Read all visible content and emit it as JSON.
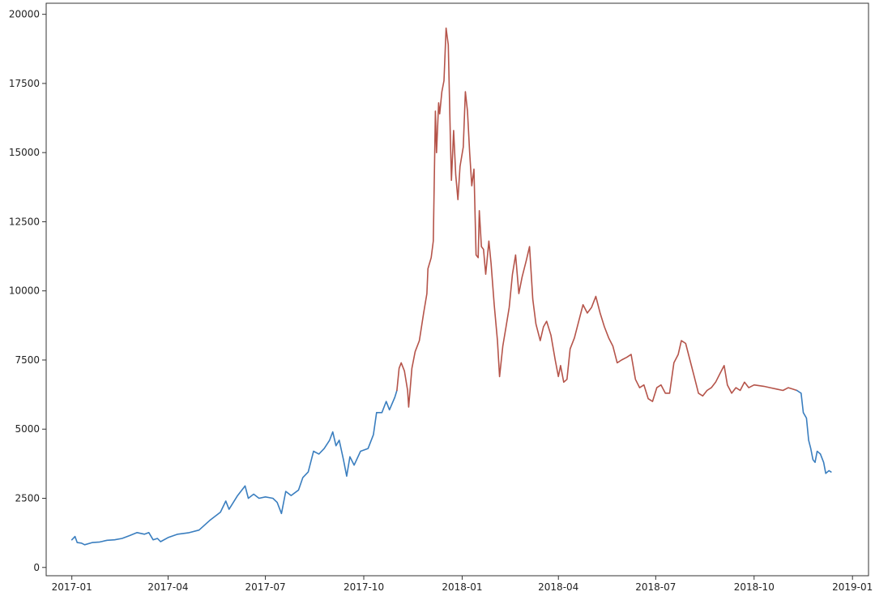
{
  "chart_data": {
    "type": "line",
    "title": "",
    "xlabel": "",
    "ylabel": "",
    "xlim": [
      "2016-12-08",
      "2019-01-16"
    ],
    "ylim": [
      -300,
      20400
    ],
    "grid": false,
    "x_ticks": [
      "2017-01",
      "2017-04",
      "2017-07",
      "2017-10",
      "2018-01",
      "2018-04",
      "2018-07",
      "2018-10",
      "2019-01"
    ],
    "y_ticks": [
      0,
      2500,
      5000,
      7500,
      10000,
      12500,
      15000,
      17500,
      20000
    ],
    "series": [
      {
        "color": "#3a7ebf",
        "points": [
          [
            "2017-01-01",
            1000
          ],
          [
            "2017-01-04",
            1120
          ],
          [
            "2017-01-06",
            900
          ],
          [
            "2017-01-10",
            880
          ],
          [
            "2017-01-13",
            820
          ],
          [
            "2017-01-20",
            900
          ],
          [
            "2017-01-27",
            920
          ],
          [
            "2017-02-03",
            980
          ],
          [
            "2017-02-10",
            1000
          ],
          [
            "2017-02-17",
            1050
          ],
          [
            "2017-02-24",
            1150
          ],
          [
            "2017-03-03",
            1260
          ],
          [
            "2017-03-10",
            1200
          ],
          [
            "2017-03-14",
            1260
          ],
          [
            "2017-03-18",
            1000
          ],
          [
            "2017-03-22",
            1050
          ],
          [
            "2017-03-25",
            930
          ],
          [
            "2017-04-01",
            1080
          ],
          [
            "2017-04-10",
            1200
          ],
          [
            "2017-04-20",
            1250
          ],
          [
            "2017-04-30",
            1350
          ],
          [
            "2017-05-10",
            1700
          ],
          [
            "2017-05-20",
            2000
          ],
          [
            "2017-05-25",
            2400
          ],
          [
            "2017-05-28",
            2100
          ],
          [
            "2017-06-05",
            2600
          ],
          [
            "2017-06-10",
            2850
          ],
          [
            "2017-06-12",
            2950
          ],
          [
            "2017-06-15",
            2500
          ],
          [
            "2017-06-20",
            2650
          ],
          [
            "2017-06-25",
            2500
          ],
          [
            "2017-07-01",
            2550
          ],
          [
            "2017-07-08",
            2500
          ],
          [
            "2017-07-12",
            2350
          ],
          [
            "2017-07-16",
            1950
          ],
          [
            "2017-07-20",
            2750
          ],
          [
            "2017-07-25",
            2600
          ],
          [
            "2017-08-01",
            2800
          ],
          [
            "2017-08-05",
            3250
          ],
          [
            "2017-08-10",
            3450
          ],
          [
            "2017-08-15",
            4200
          ],
          [
            "2017-08-20",
            4100
          ],
          [
            "2017-08-25",
            4300
          ],
          [
            "2017-08-30",
            4600
          ],
          [
            "2017-09-02",
            4900
          ],
          [
            "2017-09-05",
            4400
          ],
          [
            "2017-09-08",
            4600
          ],
          [
            "2017-09-12",
            3900
          ],
          [
            "2017-09-15",
            3300
          ],
          [
            "2017-09-18",
            4000
          ],
          [
            "2017-09-22",
            3700
          ],
          [
            "2017-09-28",
            4200
          ],
          [
            "2017-10-05",
            4300
          ],
          [
            "2017-10-10",
            4800
          ],
          [
            "2017-10-13",
            5600
          ],
          [
            "2017-10-18",
            5600
          ],
          [
            "2017-10-22",
            6000
          ],
          [
            "2017-10-25",
            5700
          ],
          [
            "2017-10-30",
            6150
          ],
          [
            "2017-11-01",
            6400
          ]
        ]
      },
      {
        "color": "#b5544a",
        "points": [
          [
            "2017-11-01",
            6400
          ],
          [
            "2017-11-03",
            7200
          ],
          [
            "2017-11-05",
            7400
          ],
          [
            "2017-11-08",
            7100
          ],
          [
            "2017-11-11",
            6400
          ],
          [
            "2017-11-12",
            5800
          ],
          [
            "2017-11-15",
            7200
          ],
          [
            "2017-11-18",
            7800
          ],
          [
            "2017-11-22",
            8200
          ],
          [
            "2017-11-26",
            9200
          ],
          [
            "2017-11-29",
            9900
          ],
          [
            "2017-11-30",
            10800
          ],
          [
            "2017-12-03",
            11200
          ],
          [
            "2017-12-05",
            11800
          ],
          [
            "2017-12-07",
            16500
          ],
          [
            "2017-12-08",
            15000
          ],
          [
            "2017-12-10",
            16800
          ],
          [
            "2017-12-11",
            16400
          ],
          [
            "2017-12-13",
            17200
          ],
          [
            "2017-12-15",
            17600
          ],
          [
            "2017-12-17",
            19500
          ],
          [
            "2017-12-19",
            18900
          ],
          [
            "2017-12-21",
            15500
          ],
          [
            "2017-12-22",
            14000
          ],
          [
            "2017-12-24",
            15800
          ],
          [
            "2017-12-26",
            14200
          ],
          [
            "2017-12-28",
            13300
          ],
          [
            "2017-12-30",
            14500
          ],
          [
            "2018-01-02",
            15200
          ],
          [
            "2018-01-04",
            17200
          ],
          [
            "2018-01-06",
            16500
          ],
          [
            "2018-01-08",
            15000
          ],
          [
            "2018-01-10",
            13800
          ],
          [
            "2018-01-12",
            14400
          ],
          [
            "2018-01-14",
            11300
          ],
          [
            "2018-01-16",
            11200
          ],
          [
            "2018-01-17",
            12900
          ],
          [
            "2018-01-19",
            11600
          ],
          [
            "2018-01-21",
            11500
          ],
          [
            "2018-01-23",
            10600
          ],
          [
            "2018-01-26",
            11800
          ],
          [
            "2018-01-28",
            11000
          ],
          [
            "2018-01-31",
            9500
          ],
          [
            "2018-02-03",
            8200
          ],
          [
            "2018-02-05",
            6900
          ],
          [
            "2018-02-08",
            8000
          ],
          [
            "2018-02-11",
            8700
          ],
          [
            "2018-02-14",
            9400
          ],
          [
            "2018-02-17",
            10600
          ],
          [
            "2018-02-20",
            11300
          ],
          [
            "2018-02-23",
            9900
          ],
          [
            "2018-02-26",
            10500
          ],
          [
            "2018-03-02",
            11100
          ],
          [
            "2018-03-05",
            11600
          ],
          [
            "2018-03-08",
            9700
          ],
          [
            "2018-03-11",
            8800
          ],
          [
            "2018-03-15",
            8200
          ],
          [
            "2018-03-18",
            8700
          ],
          [
            "2018-03-21",
            8900
          ],
          [
            "2018-03-25",
            8400
          ],
          [
            "2018-03-29",
            7500
          ],
          [
            "2018-04-01",
            6900
          ],
          [
            "2018-04-03",
            7300
          ],
          [
            "2018-04-06",
            6700
          ],
          [
            "2018-04-09",
            6800
          ],
          [
            "2018-04-12",
            7900
          ],
          [
            "2018-04-16",
            8300
          ],
          [
            "2018-04-20",
            8900
          ],
          [
            "2018-04-24",
            9500
          ],
          [
            "2018-04-28",
            9200
          ],
          [
            "2018-05-02",
            9400
          ],
          [
            "2018-05-06",
            9800
          ],
          [
            "2018-05-10",
            9200
          ],
          [
            "2018-05-14",
            8700
          ],
          [
            "2018-05-18",
            8300
          ],
          [
            "2018-05-22",
            8000
          ],
          [
            "2018-05-26",
            7400
          ],
          [
            "2018-05-30",
            7500
          ],
          [
            "2018-06-04",
            7600
          ],
          [
            "2018-06-08",
            7700
          ],
          [
            "2018-06-12",
            6800
          ],
          [
            "2018-06-16",
            6500
          ],
          [
            "2018-06-20",
            6600
          ],
          [
            "2018-06-24",
            6100
          ],
          [
            "2018-06-28",
            6000
          ],
          [
            "2018-07-02",
            6500
          ],
          [
            "2018-07-06",
            6600
          ],
          [
            "2018-07-10",
            6300
          ],
          [
            "2018-07-14",
            6300
          ],
          [
            "2018-07-18",
            7400
          ],
          [
            "2018-07-22",
            7700
          ],
          [
            "2018-07-25",
            8200
          ],
          [
            "2018-07-29",
            8100
          ],
          [
            "2018-08-02",
            7500
          ],
          [
            "2018-08-06",
            6900
          ],
          [
            "2018-08-10",
            6300
          ],
          [
            "2018-08-14",
            6200
          ],
          [
            "2018-08-18",
            6400
          ],
          [
            "2018-08-22",
            6500
          ],
          [
            "2018-08-26",
            6700
          ],
          [
            "2018-08-30",
            7000
          ],
          [
            "2018-09-03",
            7300
          ],
          [
            "2018-09-06",
            6600
          ],
          [
            "2018-09-10",
            6300
          ],
          [
            "2018-09-14",
            6500
          ],
          [
            "2018-09-18",
            6400
          ],
          [
            "2018-09-22",
            6700
          ],
          [
            "2018-09-26",
            6500
          ],
          [
            "2018-10-01",
            6600
          ],
          [
            "2018-10-10",
            6550
          ],
          [
            "2018-10-16",
            6500
          ],
          [
            "2018-10-22",
            6450
          ],
          [
            "2018-10-28",
            6400
          ],
          [
            "2018-11-02",
            6500
          ],
          [
            "2018-11-06",
            6450
          ],
          [
            "2018-11-10",
            6400
          ]
        ]
      },
      {
        "color": "#3a7ebf",
        "points": [
          [
            "2018-11-10",
            6400
          ],
          [
            "2018-11-14",
            6300
          ],
          [
            "2018-11-16",
            5600
          ],
          [
            "2018-11-19",
            5400
          ],
          [
            "2018-11-21",
            4600
          ],
          [
            "2018-11-23",
            4300
          ],
          [
            "2018-11-25",
            3900
          ],
          [
            "2018-11-27",
            3800
          ],
          [
            "2018-11-29",
            4200
          ],
          [
            "2018-12-02",
            4100
          ],
          [
            "2018-12-05",
            3800
          ],
          [
            "2018-12-07",
            3400
          ],
          [
            "2018-12-10",
            3500
          ],
          [
            "2018-12-12",
            3450
          ]
        ]
      }
    ]
  }
}
